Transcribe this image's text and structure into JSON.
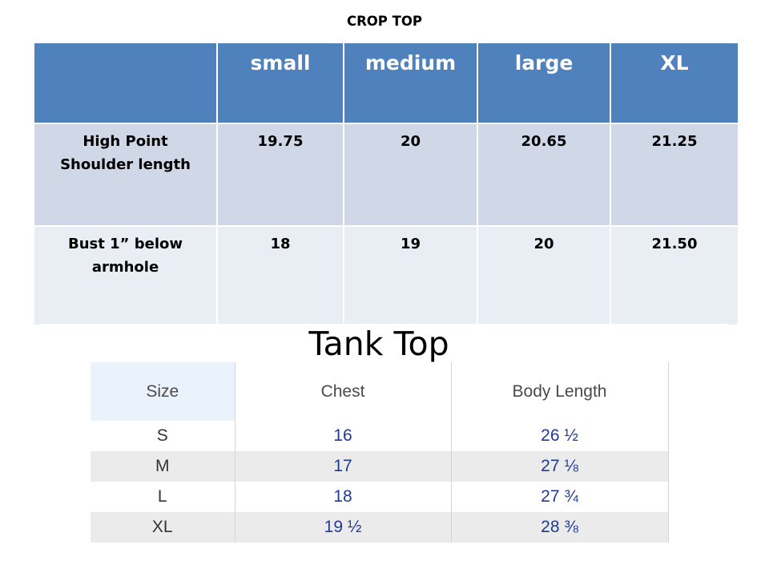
{
  "crop_top": {
    "title": "CROP TOP",
    "headers": [
      "",
      "small",
      "medium",
      "large",
      "XL"
    ],
    "rows": [
      {
        "label": "High Point Shoulder length",
        "label_line1": "High Point",
        "label_line2": "Shoulder length",
        "values": [
          "19.75",
          "20",
          "20.65",
          "21.25"
        ]
      },
      {
        "label": "Bust 1” below armhole",
        "label_line1": "Bust 1” below",
        "label_line2": "armhole",
        "values": [
          "18",
          "19",
          "20",
          "21.50"
        ]
      }
    ],
    "colors": {
      "header_bg": "#4f81bd",
      "row1_bg": "#d0d8e8",
      "row2_bg": "#e9edf4"
    }
  },
  "tank_top": {
    "title": "Tank Top",
    "headers": [
      "Size",
      "Chest",
      "Body Length"
    ],
    "rows": [
      {
        "size": "S",
        "chest": "16",
        "body_length": "26 ½"
      },
      {
        "size": "M",
        "chest": "17",
        "body_length": "27 ⅛"
      },
      {
        "size": "L",
        "chest": "18",
        "body_length": "27 ¾"
      },
      {
        "size": "XL",
        "chest": "19 ½",
        "body_length": "28 ⅜"
      }
    ],
    "colors": {
      "value_text": "#1f3a93",
      "stripe_bg": "#ebebeb",
      "size_header_bg": "#eaf2fb"
    }
  }
}
